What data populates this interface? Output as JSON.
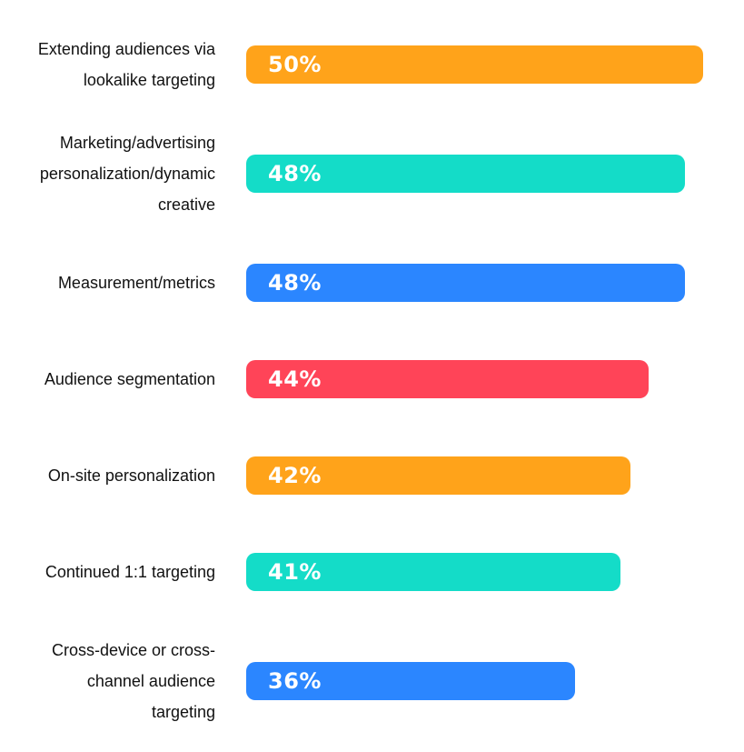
{
  "chart_data": {
    "type": "bar",
    "orientation": "horizontal",
    "categories": [
      "Extending audiences via lookalike targeting",
      "Marketing/advertising personalization/dynamic creative",
      "Measurement/metrics",
      "Audience segmentation",
      "On-site personalization",
      "Continued 1:1 targeting",
      "Cross-device or cross-channel audience targeting"
    ],
    "category_lines": [
      [
        "Extending audiences via",
        "lookalike targeting"
      ],
      [
        "Marketing/advertising",
        "personalization/dynamic",
        "creative"
      ],
      [
        "Measurement/metrics"
      ],
      [
        "Audience segmentation"
      ],
      [
        "On-site personalization"
      ],
      [
        "Continued 1:1 targeting"
      ],
      [
        "Cross-device or cross-",
        "channel audience",
        "targeting"
      ]
    ],
    "values": [
      50,
      48,
      48,
      44,
      42,
      41,
      36
    ],
    "value_labels": [
      "50%",
      "48%",
      "48%",
      "44%",
      "42%",
      "41%",
      "36%"
    ],
    "colors": [
      "#FFA31A",
      "#14DCC8",
      "#2B86FF",
      "#FF4458",
      "#FFA31A",
      "#14DCC8",
      "#2B86FF"
    ],
    "xlim": [
      0,
      50
    ],
    "title": "",
    "xlabel": "",
    "ylabel": "",
    "grid": false,
    "legend": "none"
  }
}
